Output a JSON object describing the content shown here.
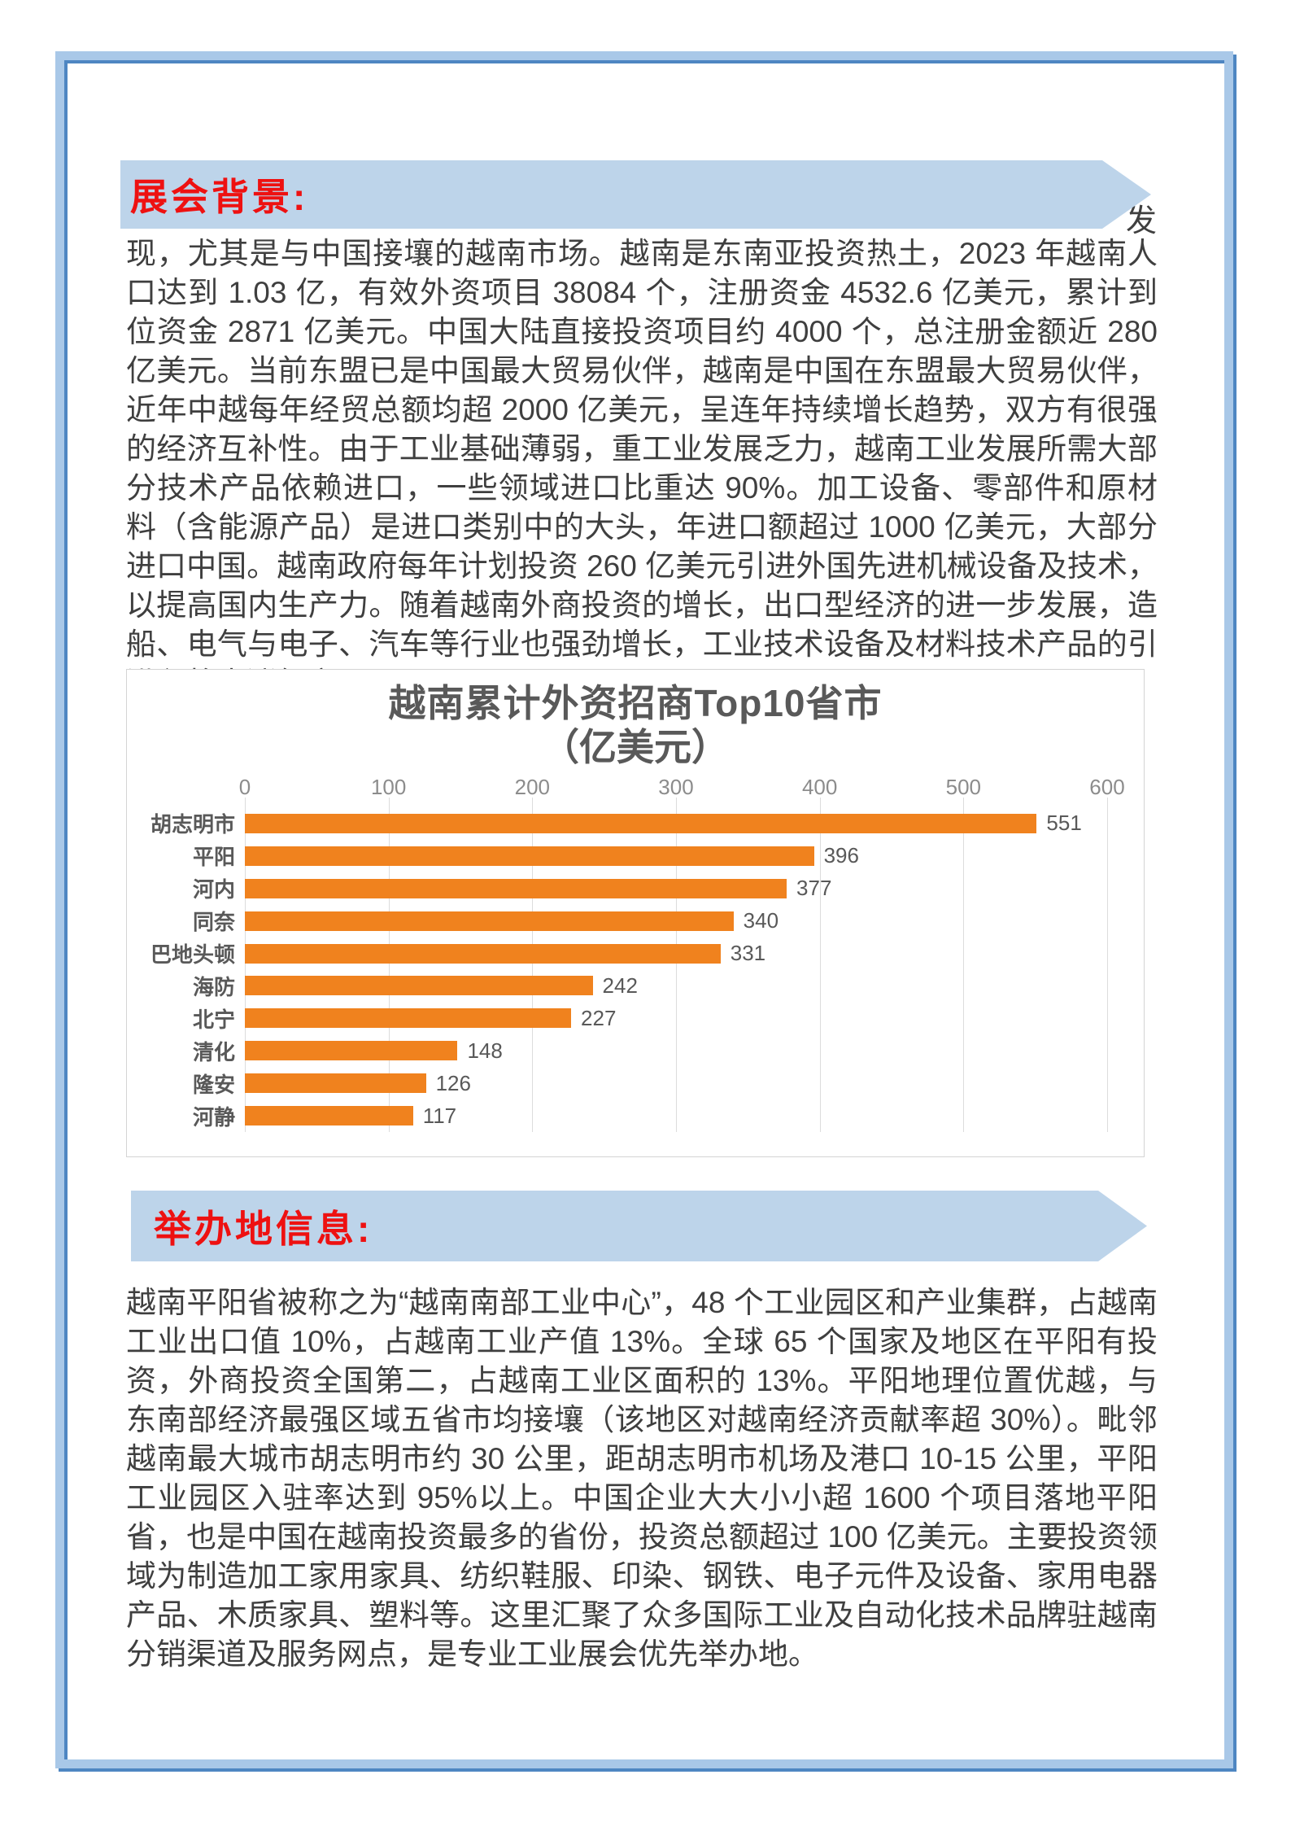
{
  "background_section": {
    "banner": "展会背景:",
    "clipped_line_fragment": "发",
    "paragraph": "现，尤其是与中国接壤的越南市场。越南是东南亚投资热土，2023 年越南人口达到 1.03 亿，有效外资项目 38084 个，注册资金 4532.6 亿美元，累计到位资金 2871 亿美元。中国大陆直接投资项目约 4000 个，总注册金额近 280 亿美元。当前东盟已是中国最大贸易伙伴，越南是中国在东盟最大贸易伙伴，近年中越每年经贸总额均超 2000 亿美元，呈连年持续增长趋势，双方有很强的经济互补性。由于工业基础薄弱，重工业发展乏力，越南工业发展所需大部分技术产品依赖进口，一些领域进口比重达 90%。加工设备、零部件和原材料（含能源产品）是进口类别中的大头，年进口额超过 1000 亿美元，大部分进口中国。越南政府每年计划投资 260 亿美元引进外国先进机械设备及技术，以提高国内生产力。随着越南外商投资的增长，出口型经济的进一步发展，造船、电气与电子、汽车等行业也强劲增长，工业技术设备及材料技术产品的引进必将水涨船高。"
  },
  "chart_data": {
    "type": "bar",
    "orientation": "horizontal",
    "title": "越南累计外资招商Top10省市",
    "subtitle": "（亿美元）",
    "categories": [
      "胡志明市",
      "平阳",
      "河内",
      "同奈",
      "巴地头顿",
      "海防",
      "北宁",
      "清化",
      "隆安",
      "河静"
    ],
    "values": [
      551,
      396,
      377,
      340,
      331,
      242,
      227,
      148,
      126,
      117
    ],
    "xlim": [
      0,
      600
    ],
    "xticks": [
      0,
      100,
      200,
      300,
      400,
      500,
      600
    ],
    "grid": "vertical",
    "legend": "none",
    "data_labels": true
  },
  "venue_section": {
    "banner": "举办地信息:",
    "paragraph": "越南平阳省被称之为“越南南部工业中心”，48 个工业园区和产业集群，占越南工业出口值 10%，占越南工业产值 13%。全球 65 个国家及地区在平阳有投资，外商投资全国第二，占越南工业区面积的 13%。平阳地理位置优越，与东南部经济最强区域五省市均接壤（该地区对越南经济贡献率超 30%）。毗邻越南最大城市胡志明市约 30 公里，距胡志明市机场及港口 10-15 公里，平阳工业园区入驻率达到 95%以上。中国企业大大小小超 1600 个项目落地平阳省，也是中国在越南投资最多的省份，投资总额超过 100 亿美元。主要投资领域为制造加工家用家具、纺织鞋服、印染、钢铁、电子元件及设备、家用电器产品、木质家具、塑料等。这里汇聚了众多国际工业及自动化技术品牌驻越南分销渠道及服务网点，是专业工业展会优先举办地。"
  },
  "colors": {
    "banner_bg": "#BDD4EA",
    "banner_text": "#EE1111",
    "frame_light": "#A9C8E8",
    "frame_dark": "#4E86C2",
    "body_text": "#3F3F3F",
    "chart_text": "#595959",
    "axis_text": "#8C8C8C",
    "grid_line": "#DCDCDC",
    "bar_color": "#F0821E",
    "chart_border": "#D4D4D4"
  }
}
